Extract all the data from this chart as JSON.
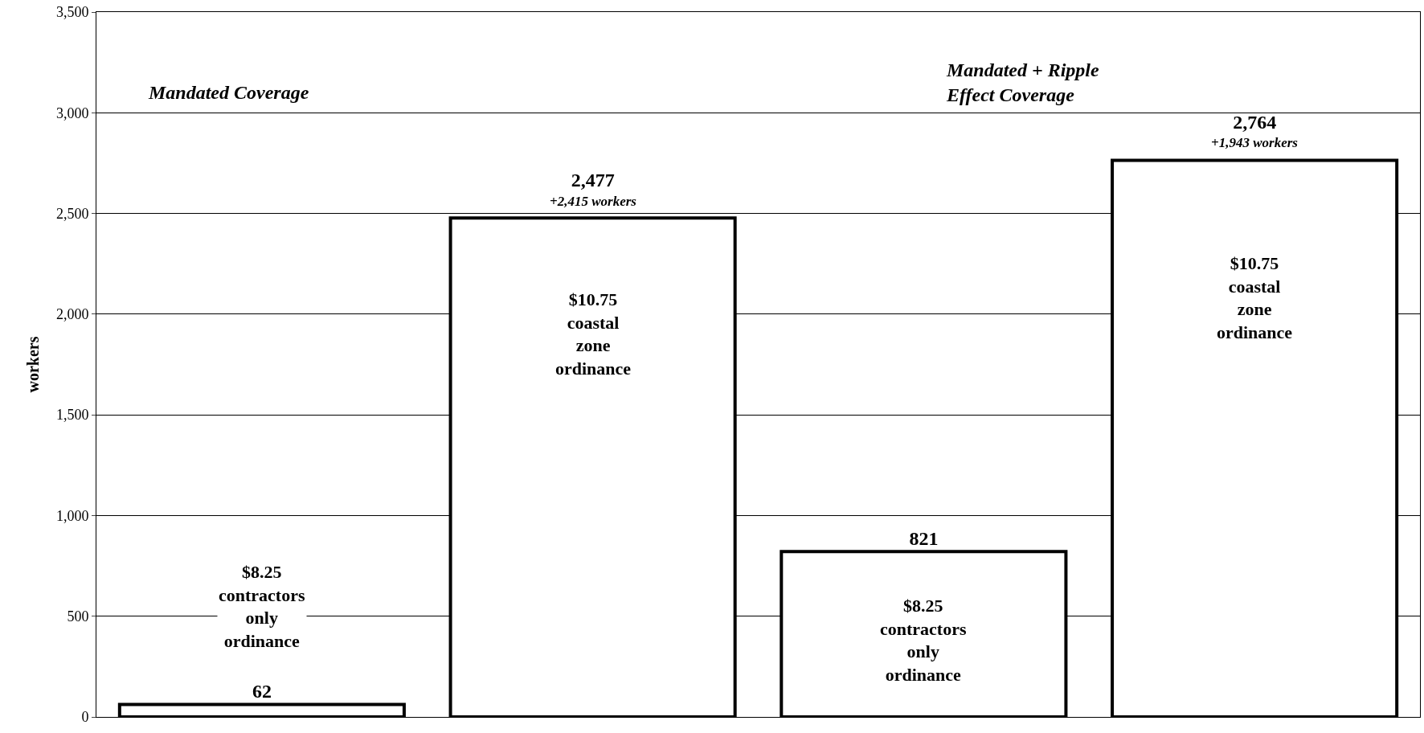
{
  "chart_data": {
    "type": "bar",
    "ylabel": "workers",
    "categories": [
      null,
      null,
      null,
      null
    ],
    "values": [
      62,
      2477,
      821,
      2764
    ],
    "value_labels": [
      "62",
      "2,477",
      "821",
      "2,764"
    ],
    "colors": [
      "#ffffff",
      "#ffffff",
      "#ffffff",
      "#ffffff"
    ],
    "ylim": [
      0,
      3500
    ],
    "yticks": [
      0,
      500,
      {
        "value": 1000,
        "label": "1,000"
      },
      {
        "value": 1500,
        "label": "1,500"
      },
      {
        "value": 2000,
        "label": "2,000"
      },
      {
        "value": 2500,
        "label": "2,500"
      },
      {
        "value": 3000,
        "label": "3,000"
      },
      {
        "value": 3500,
        "label": "3,500"
      }
    ],
    "grid": "y",
    "annotations": [
      "Mandated Coverage",
      "Mandated + Ripple\nEffect Coverage",
      "+2,415 workers",
      "+1,943 workers",
      "$8.25\ncontractors\nonly\nordinance",
      "$10.75\ncoastal\nzone\nordinance",
      "$8.25\ncontractors\nonly\nordinance",
      "$10.75\ncoastal\nzone\nordinance"
    ]
  }
}
